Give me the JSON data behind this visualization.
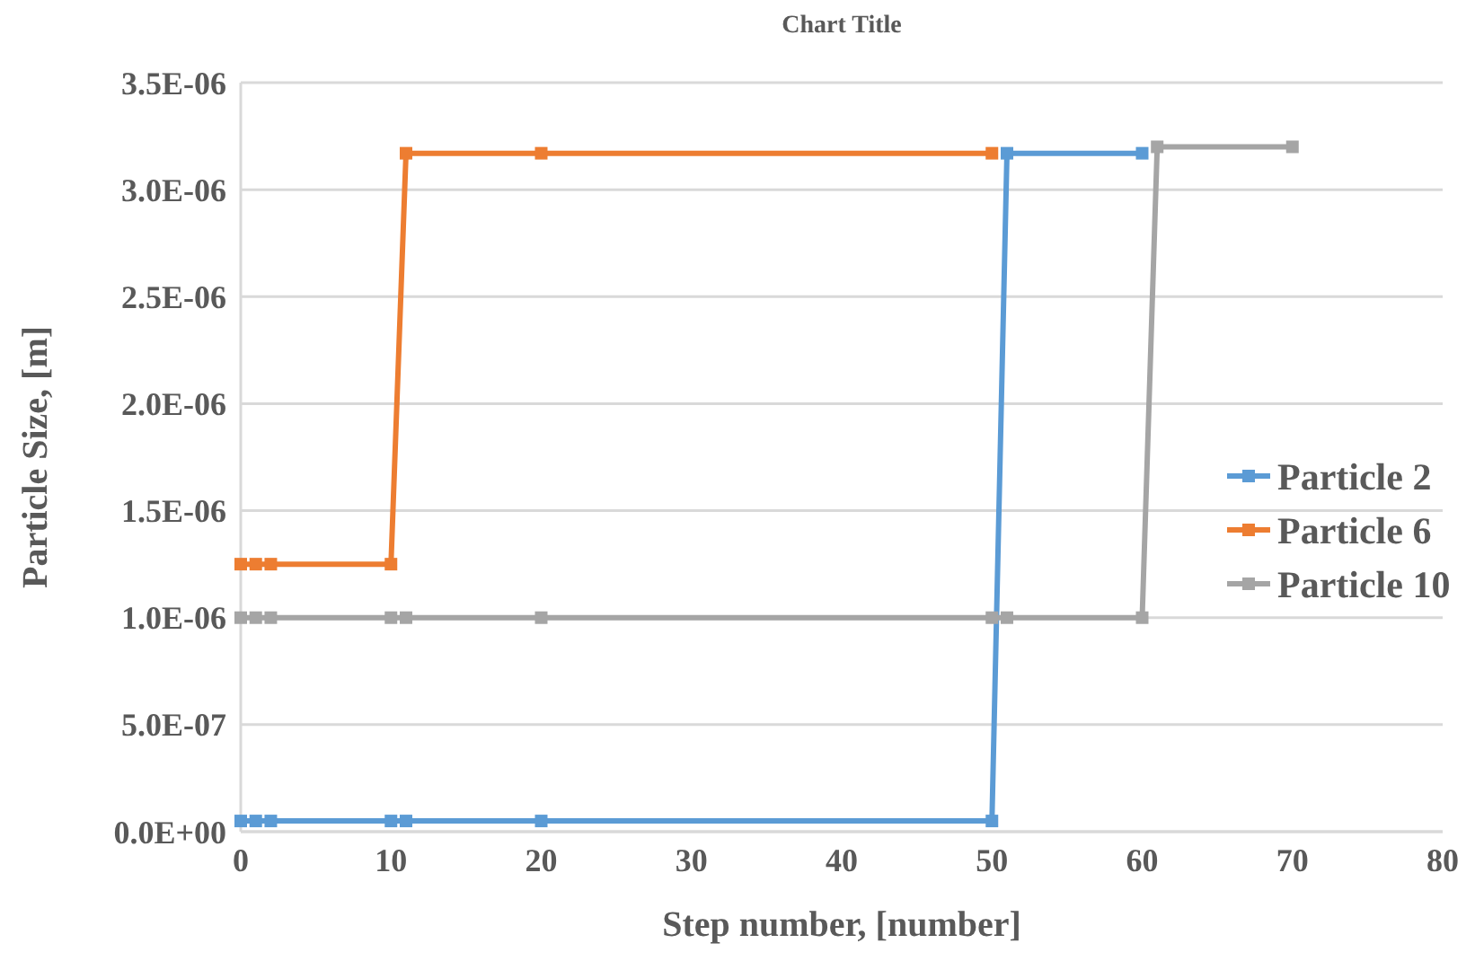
{
  "chart_data": {
    "type": "line",
    "title": "Chart Title",
    "xlabel": "Step number, [number]",
    "ylabel": "Particle Size, [m]",
    "xlim": [
      0,
      80
    ],
    "xticks": [
      0,
      10,
      20,
      30,
      40,
      50,
      60,
      70,
      80
    ],
    "ylim": [
      0,
      3.5e-06
    ],
    "yticks": [
      {
        "value": 0,
        "label": "0.0E+00"
      },
      {
        "value": 5e-07,
        "label": "5.0E-07"
      },
      {
        "value": 1e-06,
        "label": "1.0E-06"
      },
      {
        "value": 1.5e-06,
        "label": "1.5E-06"
      },
      {
        "value": 2e-06,
        "label": "2.0E-06"
      },
      {
        "value": 2.5e-06,
        "label": "2.5E-06"
      },
      {
        "value": 3e-06,
        "label": "3.0E-06"
      },
      {
        "value": 3.5e-06,
        "label": "3.5E-06"
      }
    ],
    "grid": "y",
    "legend": "right",
    "marker": "square",
    "line_style": "solid",
    "series": [
      {
        "name": "Particle 2",
        "color": "#5b9bd5",
        "x": [
          0,
          1,
          2,
          10,
          11,
          20,
          50,
          51,
          60
        ],
        "values": [
          5e-08,
          5e-08,
          5e-08,
          5e-08,
          5e-08,
          5e-08,
          5e-08,
          3.17e-06,
          3.17e-06
        ]
      },
      {
        "name": "Particle 6",
        "color": "#ed7d31",
        "x": [
          0,
          1,
          2,
          10,
          11,
          20,
          50
        ],
        "values": [
          1.25e-06,
          1.25e-06,
          1.25e-06,
          1.25e-06,
          3.17e-06,
          3.17e-06,
          3.17e-06
        ]
      },
      {
        "name": "Particle 10",
        "color": "#a5a5a5",
        "x": [
          0,
          1,
          2,
          10,
          11,
          20,
          50,
          51,
          60,
          61,
          70
        ],
        "values": [
          1e-06,
          1e-06,
          1e-06,
          1e-06,
          1e-06,
          1e-06,
          1e-06,
          1e-06,
          1e-06,
          3.2e-06,
          3.2e-06
        ]
      }
    ]
  }
}
